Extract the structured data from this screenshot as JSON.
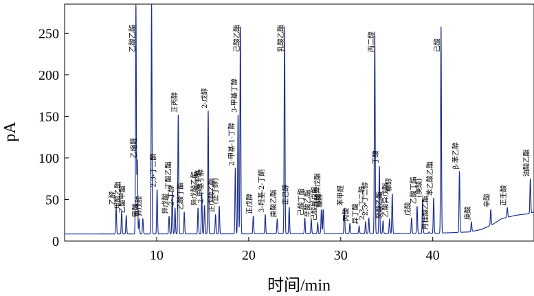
{
  "chart_data": {
    "type": "line",
    "xlabel": "时间/min",
    "ylabel": "pA",
    "xlim": [
      0,
      51
    ],
    "ylim": [
      0,
      285
    ],
    "xticks": [
      10,
      20,
      30,
      40
    ],
    "yticks": [
      0,
      50,
      100,
      150,
      200,
      250
    ],
    "grid": false,
    "series": [
      {
        "baseline": [
          [
            0,
            8.5
          ],
          [
            20,
            8.7
          ],
          [
            40,
            9.2
          ],
          [
            44,
            11
          ],
          [
            45.3,
            14
          ],
          [
            46.5,
            20
          ],
          [
            47.5,
            27
          ],
          [
            49,
            31
          ],
          [
            50.5,
            33
          ],
          [
            51,
            35
          ]
        ],
        "peaks": [
          {
            "x": 5.6,
            "y": 41,
            "label": "乙醛"
          },
          {
            "x": 6.2,
            "y": 36,
            "label": "甲酸乙酯"
          },
          {
            "x": 6.7,
            "y": 31,
            "label": "乙酸甲酯"
          },
          {
            "x": 7.75,
            "y": 285,
            "label": "乙酸乙酯"
          },
          {
            "x": 7.9,
            "y": 97,
            "label": "乙缩醛"
          },
          {
            "x": 8.1,
            "y": 26,
            "label": "甲醇"
          },
          {
            "x": 8.5,
            "y": 27,
            "label": "异戊醛"
          },
          {
            "x": 9.45,
            "y": 285,
            "label": ""
          },
          {
            "x": 10.05,
            "y": 62,
            "label": "2,3-丁二酮"
          },
          {
            "x": 11.35,
            "y": 30,
            "label": "异戊酸"
          },
          {
            "x": 11.7,
            "y": 60,
            "label": "丁酸乙酯"
          },
          {
            "x": 12.0,
            "y": 40,
            "label": "2-丁醇"
          },
          {
            "x": 12.35,
            "y": 152,
            "label": "正丙醇"
          },
          {
            "x": 13.0,
            "y": 35,
            "label": "乙酸丁酯"
          },
          {
            "x": 14.5,
            "y": 40,
            "label": "异戊酸乙酯"
          },
          {
            "x": 14.9,
            "y": 58,
            "label": "异丁醇"
          },
          {
            "x": 15.2,
            "y": 43,
            "label": "2-甲基丁醇"
          },
          {
            "x": 15.6,
            "y": 157,
            "label": "2-戊醇"
          },
          {
            "x": 16.4,
            "y": 32,
            "label": "正戊酸乙酯"
          },
          {
            "x": 16.8,
            "y": 42,
            "label": "(正丁醇)"
          },
          {
            "x": 18.55,
            "y": 88,
            "label": "2-甲基-1-丁醇"
          },
          {
            "x": 18.85,
            "y": 152,
            "label": "3-甲基丁醇"
          },
          {
            "x": 19.1,
            "y": 258,
            "label": "己酸乙酯"
          },
          {
            "x": 20.5,
            "y": 30,
            "label": "正戊醇"
          },
          {
            "x": 21.8,
            "y": 32,
            "label": "3-羟基-2-丁酮"
          },
          {
            "x": 23.1,
            "y": 26,
            "label": "庚酸乙酯"
          },
          {
            "x": 23.9,
            "y": 258,
            "label": "乳酸乙酯"
          },
          {
            "x": 24.4,
            "y": 41,
            "label": "正己醇"
          },
          {
            "x": 26.1,
            "y": 28,
            "label": "己酸丁酯"
          },
          {
            "x": 26.8,
            "y": 26,
            "label": "辛酸乙酯"
          },
          {
            "x": 27.5,
            "y": 22,
            "label": "己酸异戊酯"
          },
          {
            "x": 27.9,
            "y": 38,
            "label": "己酸异戊酯"
          },
          {
            "x": 28.1,
            "y": 38,
            "label": "糠醛"
          },
          {
            "x": 30.4,
            "y": 40,
            "label": "苯甲醛"
          },
          {
            "x": 31.0,
            "y": 21,
            "label": "丙酸"
          },
          {
            "x": 32.0,
            "y": 18,
            "label": "异丁酸"
          },
          {
            "x": 32.7,
            "y": 23,
            "label": "2,3-丁二醇"
          },
          {
            "x": 33.05,
            "y": 28,
            "label": "2,3-丁二醇"
          },
          {
            "x": 33.7,
            "y": 252,
            "label": "丙二醇"
          },
          {
            "x": 34.2,
            "y": 90,
            "label": "丁酸"
          },
          {
            "x": 34.6,
            "y": 24,
            "label": "癸酸乙酯"
          },
          {
            "x": 35.3,
            "y": 26,
            "label": "乙酸异戊酯"
          },
          {
            "x": 35.6,
            "y": 57,
            "label": "糠醇"
          },
          {
            "x": 37.7,
            "y": 28,
            "label": "戊酸"
          },
          {
            "x": 38.3,
            "y": 42,
            "label": "乙酸丁酯"
          },
          {
            "x": 38.9,
            "y": 50,
            "label": "(庚酸)"
          },
          {
            "x": 39.6,
            "y": 11,
            "label": "月桂酸乙酯"
          },
          {
            "x": 40.1,
            "y": 52,
            "label": "苯乙酸乙酯"
          },
          {
            "x": 40.9,
            "y": 258,
            "label": "己酸"
          },
          {
            "x": 42.9,
            "y": 84,
            "label": "β-苯乙醇"
          },
          {
            "x": 44.2,
            "y": 23,
            "label": "庚酸"
          },
          {
            "x": 46.3,
            "y": 38,
            "label": "辛酸"
          },
          {
            "x": 48.1,
            "y": 40,
            "label": "正壬酸"
          },
          {
            "x": 50.6,
            "y": 75,
            "label": "油酸乙酯"
          }
        ]
      }
    ]
  }
}
